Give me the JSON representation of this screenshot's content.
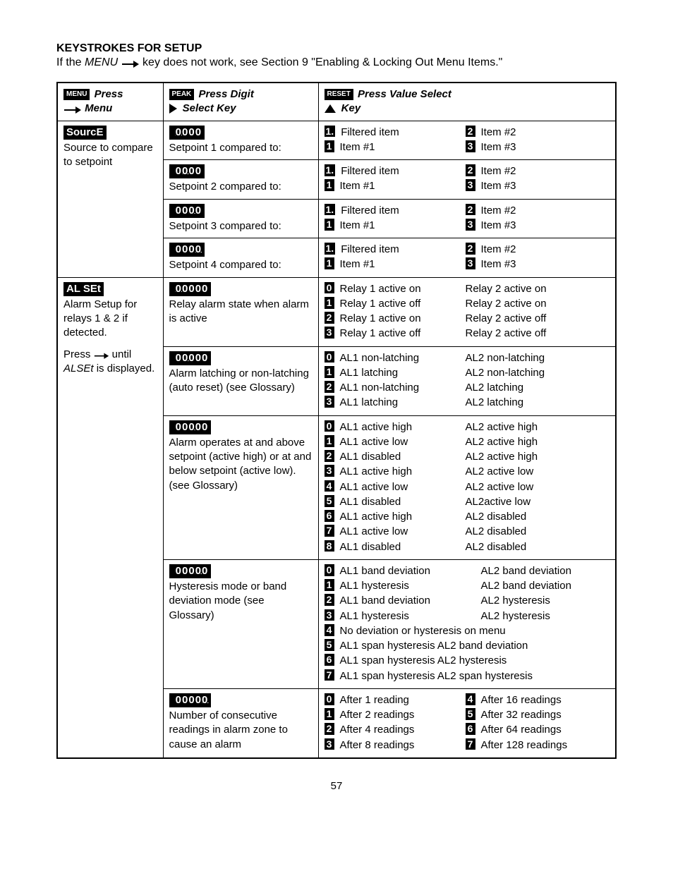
{
  "heading": "KEYSTROKES FOR SETUP",
  "intro_prefix": "If the ",
  "intro_menu": "MENU",
  "intro_suffix": " key does not work, see Section 9 \"Enabling & Locking Out Menu Items.\"",
  "hdr": {
    "menu_btn": "MENU",
    "menu_text1": "Press",
    "menu_text2": "Menu",
    "peak_btn": "PEAK",
    "peak_text1": "Press Digit",
    "peak_text2": "Select Key",
    "reset_btn": "RESET",
    "reset_text1": "Press Value Select",
    "reset_text2": "Key"
  },
  "source": {
    "name": "SourcE",
    "desc": "Source to compare to setpoint",
    "rows": [
      {
        "digits": "_0000",
        "hl": 0,
        "label": "Setpoint 1 compared to:"
      },
      {
        "digits": "_0000",
        "hl": 1,
        "label": "Setpoint 2 compared to:"
      },
      {
        "digits": "_0000",
        "hl": 2,
        "label": "Setpoint 3 compared to:"
      },
      {
        "digits": "_0000",
        "hl": 3,
        "label": "Setpoint 4 compared to:"
      }
    ],
    "vals_left": [
      {
        "idx": "1.",
        "txt": "Filtered item"
      },
      {
        "idx": "1",
        "txt": "Item #1"
      }
    ],
    "vals_right": [
      {
        "idx": "2",
        "txt": "Item #2"
      },
      {
        "idx": "3",
        "txt": "Item #3"
      }
    ]
  },
  "alset": {
    "name": "AL SEt",
    "desc1": "Alarm Setup for relays 1 & 2 if detected.",
    "desc2_pre": "Press ",
    "desc2_mid": " until ",
    "desc2_italic": "ALSEt",
    "desc2_post": " is displayed.",
    "rows": [
      {
        "digits": "_00000",
        "hl": 0,
        "label": "Relay alarm state when alarm is active",
        "left": [
          {
            "idx": "0",
            "txt": "Relay 1 active on"
          },
          {
            "idx": "1",
            "txt": "Relay 1 active off"
          },
          {
            "idx": "2",
            "txt": "Relay 1 active on"
          },
          {
            "idx": "3",
            "txt": "Relay 1 active off"
          }
        ],
        "right": [
          "Relay 2 active on",
          "Relay 2 active on",
          "Relay 2 active off",
          "Relay 2 active off"
        ]
      },
      {
        "digits": "_00000",
        "hl": 1,
        "label": "Alarm latching or non-latching (auto reset) (see Glossary)",
        "left": [
          {
            "idx": "0",
            "txt": "AL1 non-latching"
          },
          {
            "idx": "1",
            "txt": "AL1 latching"
          },
          {
            "idx": "2",
            "txt": "AL1 non-latching"
          },
          {
            "idx": "3",
            "txt": "AL1 latching"
          }
        ],
        "right": [
          "AL2 non-latching",
          "AL2 non-latching",
          "AL2 latching",
          "AL2 latching"
        ]
      },
      {
        "digits": "_00000",
        "hl": 2,
        "label": "Alarm operates at and above setpoint (active high) or at and below setpoint (active low). (see Glossary)",
        "left": [
          {
            "idx": "0",
            "txt": "AL1 active high"
          },
          {
            "idx": "1",
            "txt": "AL1 active low"
          },
          {
            "idx": "2",
            "txt": "AL1 disabled"
          },
          {
            "idx": "3",
            "txt": "AL1 active high"
          },
          {
            "idx": "4",
            "txt": "AL1 active low"
          },
          {
            "idx": "5",
            "txt": "AL1 disabled"
          },
          {
            "idx": "6",
            "txt": "AL1 active high"
          },
          {
            "idx": "7",
            "txt": "AL1 active low"
          },
          {
            "idx": "8",
            "txt": "AL1 disabled"
          }
        ],
        "right": [
          "AL2 active high",
          "AL2 active high",
          "AL2 active high",
          "AL2 active low",
          "AL2 active low",
          "AL2active low",
          "AL2 disabled",
          "AL2 disabled",
          "AL2 disabled"
        ]
      },
      {
        "digits": "_00000",
        "hl": 3,
        "label": "Hysteresis mode or band deviation mode (see Glossary)",
        "lines": [
          {
            "idx": "0",
            "c1": "AL1 band deviation",
            "c2": "AL2 band deviation"
          },
          {
            "idx": "1",
            "c1": "AL1 hysteresis",
            "c2": "AL2 band deviation"
          },
          {
            "idx": "2",
            "c1": "AL1 band deviation",
            "c2": "AL2 hysteresis"
          },
          {
            "idx": "3",
            "c1": "AL1 hysteresis",
            "c2": "AL2 hysteresis"
          },
          {
            "idx": "4",
            "full": "No deviation or hysteresis on menu"
          },
          {
            "idx": "5",
            "full": "AL1 span hysteresis AL2 band deviation"
          },
          {
            "idx": "6",
            "full": "AL1 span hysteresis AL2 hysteresis"
          },
          {
            "idx": "7",
            "full": "AL1 span hysteresis AL2 span hysteresis"
          }
        ]
      },
      {
        "digits": "_00000",
        "hl": 4,
        "label": "Number of consecutive readings in alarm zone to cause an alarm",
        "left": [
          {
            "idx": "0",
            "txt": "After 1 reading"
          },
          {
            "idx": "1",
            "txt": "After 2 readings"
          },
          {
            "idx": "2",
            "txt": "After 4 readings"
          },
          {
            "idx": "3",
            "txt": "After 8 readings"
          }
        ],
        "right2": [
          {
            "idx": "4",
            "txt": "After 16 readings"
          },
          {
            "idx": "5",
            "txt": "After 32 readings"
          },
          {
            "idx": "6",
            "txt": "After 64 readings"
          },
          {
            "idx": "7",
            "txt": "After 128 readings"
          }
        ]
      }
    ]
  },
  "page": "57",
  "colors": {
    "fg": "#000000",
    "bg": "#ffffff",
    "inverse_bg": "#000000",
    "inverse_fg": "#ffffff"
  }
}
